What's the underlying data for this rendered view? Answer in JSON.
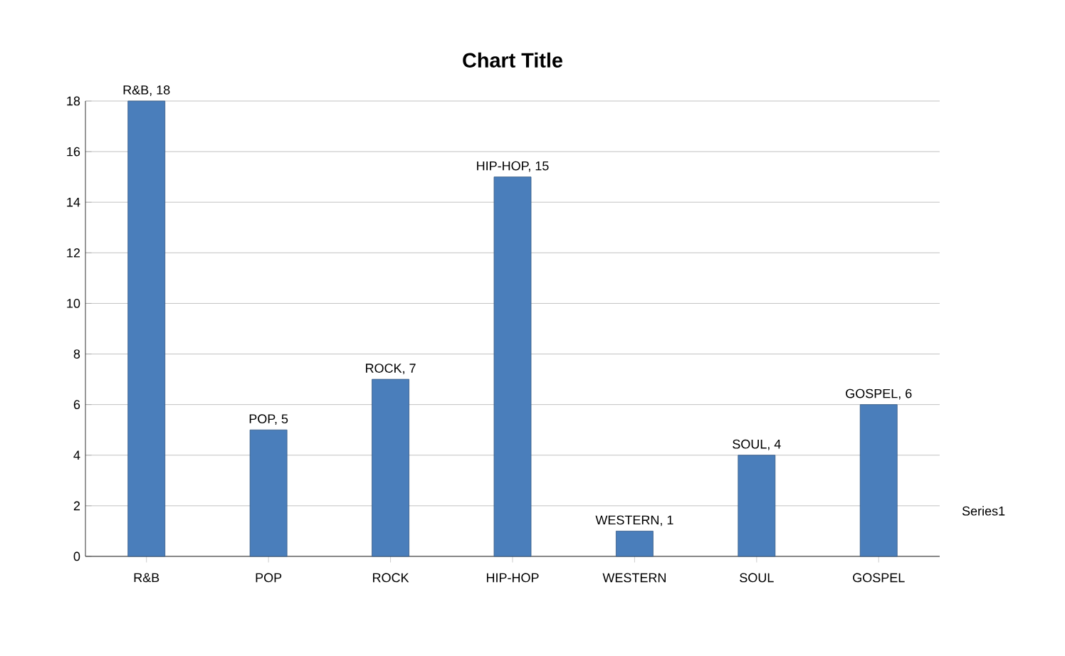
{
  "chart_data": {
    "type": "bar",
    "title": "Chart Title",
    "categories": [
      "R&B",
      "POP",
      "ROCK",
      "HIP-HOP",
      "WESTERN",
      "SOUL",
      "GOSPEL"
    ],
    "series": [
      {
        "name": "Series1",
        "color": "#4a7ebb",
        "values": [
          18,
          5,
          7,
          15,
          1,
          4,
          6
        ],
        "value_labels": [
          "R&B, 18",
          "POP, 5",
          "ROCK, 7",
          "HIP-HOP, 15",
          "WESTERN, 1",
          "SOUL, 4",
          "GOSPEL, 6"
        ]
      }
    ],
    "ylim": [
      0,
      18
    ],
    "yticks": [
      0,
      2,
      4,
      6,
      8,
      10,
      12,
      14,
      16,
      18
    ],
    "grid": "y",
    "legend": false
  }
}
